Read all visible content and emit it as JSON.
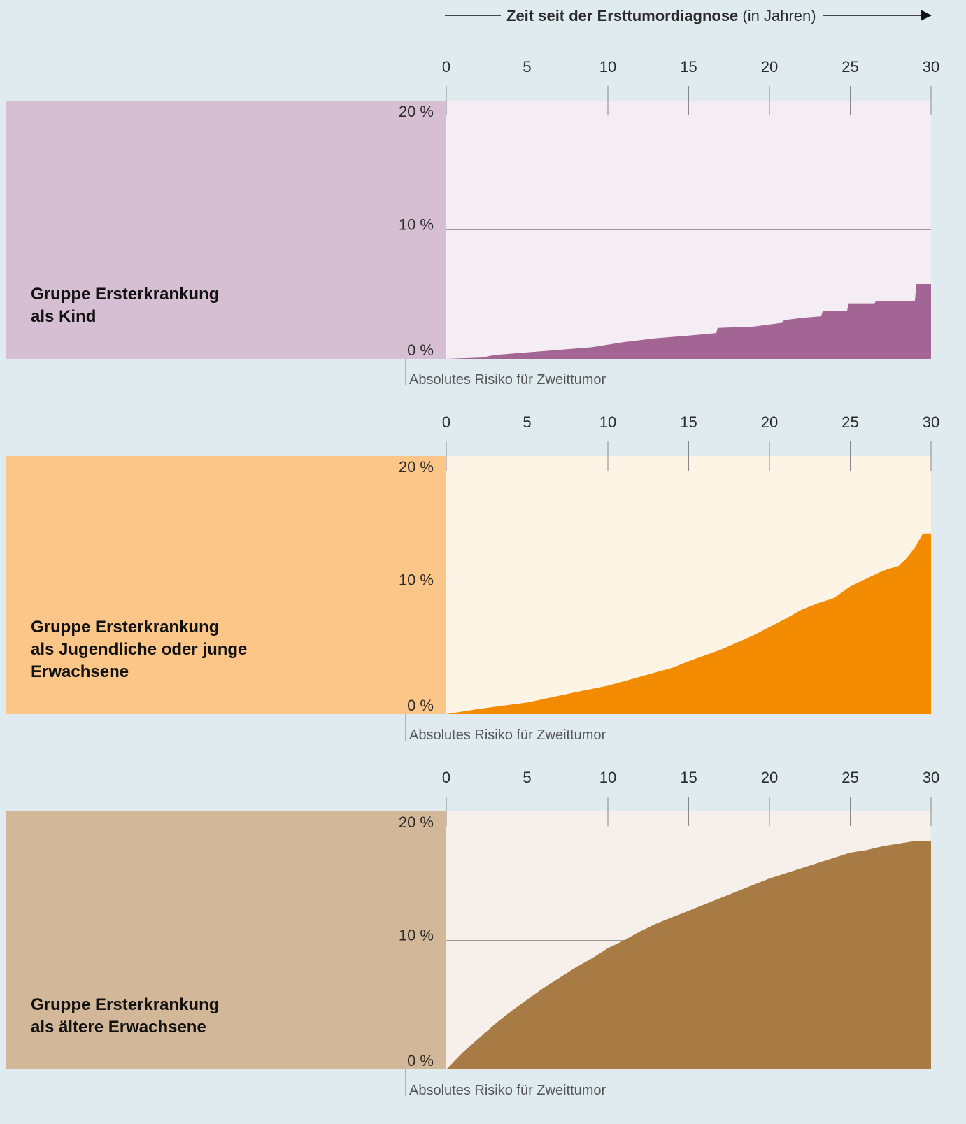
{
  "header": {
    "title": "Zeit seit der Ersttumordiagnose",
    "unit": "(in Jahren)"
  },
  "chart_data": [
    {
      "type": "area",
      "title": [
        "Gruppe Ersterkrankung",
        "als Kind"
      ],
      "y_label": "Absolutes Risiko für Zweittumor",
      "x": [
        0,
        1,
        2.2,
        3,
        5,
        7,
        9,
        11,
        13,
        15,
        16.7,
        16.8,
        19,
        20.8,
        20.9,
        22.2,
        23.2,
        23.3,
        24.8,
        24.9,
        26.5,
        26.6,
        29,
        29.1,
        30
      ],
      "values": [
        0,
        0.05,
        0.1,
        0.3,
        0.5,
        0.7,
        0.9,
        1.3,
        1.6,
        1.8,
        2.0,
        2.4,
        2.5,
        2.8,
        3.0,
        3.2,
        3.3,
        3.7,
        3.7,
        4.3,
        4.3,
        4.5,
        4.5,
        5.8,
        5.8
      ],
      "color": "#a36593",
      "background": "#f4eef4",
      "panel_color": "#d7bfd3",
      "xlim": [
        0,
        30
      ],
      "xticks": [
        0,
        5,
        10,
        15,
        20,
        25,
        30
      ],
      "ylim": [
        0,
        20
      ],
      "yticks": [
        {
          "value": 0,
          "label": "0 %"
        },
        {
          "value": 10,
          "label": "10 %"
        },
        {
          "value": 20,
          "label": "20 %"
        }
      ],
      "grid_values": [
        10
      ]
    },
    {
      "type": "area",
      "title": [
        "Gruppe Ersterkrankung",
        "als Jugendliche oder junge",
        "Erwachsene"
      ],
      "y_label": "Absolutes Risiko für Zweittumor",
      "x": [
        0,
        2,
        5,
        8,
        10,
        12,
        14,
        15,
        17,
        19,
        21,
        22,
        23,
        24,
        25,
        26,
        27,
        28,
        28.5,
        29,
        29.5,
        30
      ],
      "values": [
        0,
        0.4,
        0.9,
        1.7,
        2.2,
        2.9,
        3.6,
        4.1,
        5.0,
        6.1,
        7.4,
        8.1,
        8.6,
        9.0,
        9.9,
        10.5,
        11.1,
        11.5,
        12.1,
        12.9,
        14.0,
        14.0
      ],
      "color": "#f38b00",
      "background": "#fef4e6",
      "panel_color": "#fcc688",
      "xlim": [
        0,
        30
      ],
      "xticks": [
        0,
        5,
        10,
        15,
        20,
        25,
        30
      ],
      "ylim": [
        0,
        20
      ],
      "yticks": [
        {
          "value": 0,
          "label": "0 %"
        },
        {
          "value": 10,
          "label": "10 %"
        },
        {
          "value": 20,
          "label": "20 %"
        }
      ],
      "grid_values": [
        10
      ]
    },
    {
      "type": "area",
      "title": [
        "Gruppe Ersterkrankung",
        "als ältere Erwachsene"
      ],
      "y_label": "Absolutes Risiko für Zweittumor",
      "x": [
        0,
        1,
        2,
        3,
        4,
        5,
        6,
        7,
        8,
        9,
        10,
        11,
        12,
        13,
        14,
        15,
        16,
        17,
        18,
        19,
        20,
        21,
        22,
        23,
        24,
        25,
        26,
        27,
        28,
        29,
        30
      ],
      "values": [
        0,
        1.3,
        2.4,
        3.5,
        4.5,
        5.4,
        6.3,
        7.1,
        7.9,
        8.6,
        9.4,
        10.0,
        10.7,
        11.3,
        11.8,
        12.3,
        12.8,
        13.3,
        13.8,
        14.3,
        14.8,
        15.2,
        15.6,
        16.0,
        16.4,
        16.8,
        17.0,
        17.3,
        17.5,
        17.7,
        17.7
      ],
      "color": "#a87b44",
      "background": "#f7f0ea",
      "panel_color": "#d2b898",
      "xlim": [
        0,
        30
      ],
      "xticks": [
        0,
        5,
        10,
        15,
        20,
        25,
        30
      ],
      "ylim": [
        0,
        20
      ],
      "yticks": [
        {
          "value": 0,
          "label": "0 %"
        },
        {
          "value": 10,
          "label": "10 %"
        },
        {
          "value": 20,
          "label": "20 %"
        }
      ],
      "grid_values": [
        10
      ]
    }
  ]
}
